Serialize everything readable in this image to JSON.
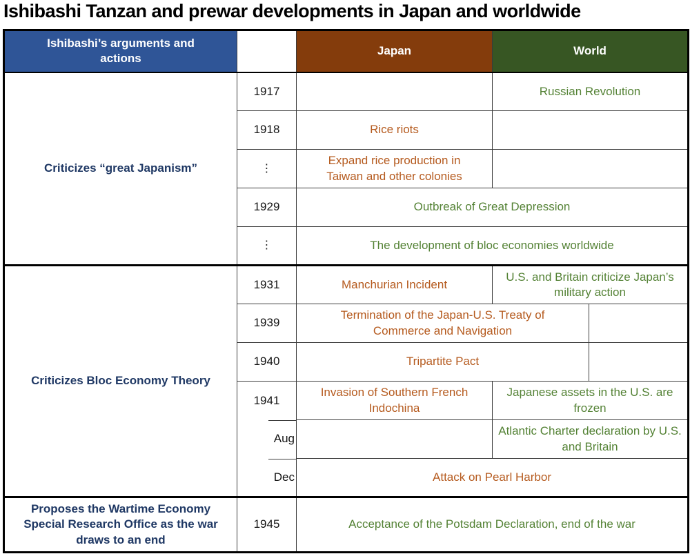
{
  "title": "Ishibashi Tanzan and prewar developments in Japan and worldwide",
  "header": {
    "arguments": "Ishibashi’s arguments and actions",
    "year_blank": "",
    "japan": "Japan",
    "world": "World"
  },
  "groups": {
    "great_japanism": "Criticizes “great Japanism”",
    "bloc_economy": "Criticizes Bloc Economy Theory",
    "wartime_office": "Proposes the Wartime Economy Special Research Office as the war draws to an end"
  },
  "rows": [
    {
      "year": "1917",
      "japan": "",
      "world": "Russian Revolution"
    },
    {
      "year": "1918",
      "japan": "Rice riots",
      "world": ""
    },
    {
      "year": "⋮",
      "japan": "Expand rice production in Taiwan and other colonies",
      "world": ""
    },
    {
      "year": "1929",
      "full": "Outbreak of Great Depression"
    },
    {
      "year": "⋮",
      "full": "The development of bloc economies worldwide"
    },
    {
      "year": "1931",
      "japan": "Manchurian Incident",
      "world": "U.S. and Britain criticize Japan’s military action"
    },
    {
      "year": "1939",
      "wide": "Termination of the Japan-U.S. Treaty of Commerce and Navigation",
      "right": ""
    },
    {
      "year": "1940",
      "wide": "Tripartite Pact",
      "right": ""
    },
    {
      "year": "1941",
      "japan": "Invasion of Southern French Indochina",
      "world": "Japanese assets in the U.S. are frozen"
    },
    {
      "year": "Aug",
      "japan": "",
      "world": "Atlantic Charter declaration by U.S. and Britain"
    },
    {
      "year": "Dec",
      "full_japan": "Attack on Pearl Harbor"
    },
    {
      "year": "1945",
      "full": "Acceptance of the Potsdam Declaration, end of the war"
    }
  ],
  "colors": {
    "header_arguments_bg": "#2F5597",
    "header_japan_bg": "#843C0C",
    "header_world_bg": "#375623",
    "japan_event_text": "#B55A1E",
    "world_event_text": "#548235",
    "arguments_text": "#1F3864",
    "year_text": "#141414",
    "border": "#3b3b3b"
  }
}
